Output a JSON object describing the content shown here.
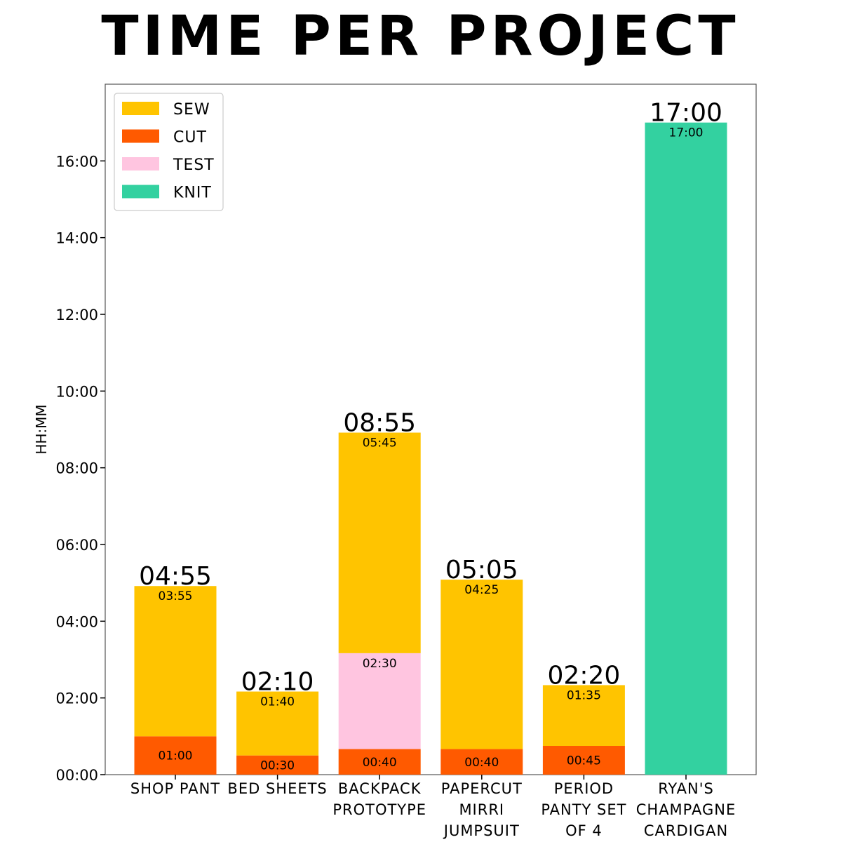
{
  "chart_data": {
    "type": "bar",
    "stacked": true,
    "title": "TIME PER PROJECT",
    "xlabel": "",
    "ylabel": "HH:MM",
    "y_unit": "minutes",
    "ylim": [
      0,
      1080
    ],
    "yticks": [
      0,
      120,
      240,
      360,
      480,
      600,
      720,
      840,
      960
    ],
    "ytick_labels": [
      "00:00",
      "02:00",
      "04:00",
      "06:00",
      "08:00",
      "10:00",
      "12:00",
      "14:00",
      "16:00"
    ],
    "legend_position": "top-left",
    "grid": false,
    "categories": [
      [
        "SHOP PANT"
      ],
      [
        "BED SHEETS"
      ],
      [
        "BACKPACK",
        "PROTOTYPE"
      ],
      [
        "PAPERCUT",
        "MIRRI",
        "JUMPSUIT"
      ],
      [
        "PERIOD",
        "PANTY SET",
        "OF 4"
      ],
      [
        "RYAN'S",
        "CHAMPAGNE",
        "CARDIGAN"
      ]
    ],
    "totals": [
      295,
      130,
      535,
      305,
      140,
      1020
    ],
    "total_labels": [
      "04:55",
      "02:10",
      "08:55",
      "05:05",
      "02:20",
      "17:00"
    ],
    "series": [
      {
        "name": "CUT",
        "color": "#ff5a00",
        "values": [
          60,
          30,
          40,
          40,
          45,
          0
        ],
        "labels": [
          "01:00",
          "00:30",
          "00:40",
          "00:40",
          "00:45",
          ""
        ]
      },
      {
        "name": "TEST",
        "color": "#ffc5e0",
        "values": [
          0,
          0,
          150,
          0,
          0,
          0
        ],
        "labels": [
          "",
          "",
          "02:30",
          "",
          "",
          ""
        ]
      },
      {
        "name": "SEW",
        "color": "#ffc400",
        "values": [
          235,
          100,
          345,
          265,
          95,
          0
        ],
        "labels": [
          "03:55",
          "01:40",
          "05:45",
          "04:25",
          "01:35",
          ""
        ]
      },
      {
        "name": "KNIT",
        "color": "#33d1a0",
        "values": [
          0,
          0,
          0,
          0,
          0,
          1020
        ],
        "labels": [
          "",
          "",
          "",
          "",
          "",
          "17:00"
        ]
      }
    ],
    "legend_order": [
      "SEW",
      "CUT",
      "TEST",
      "KNIT"
    ]
  }
}
